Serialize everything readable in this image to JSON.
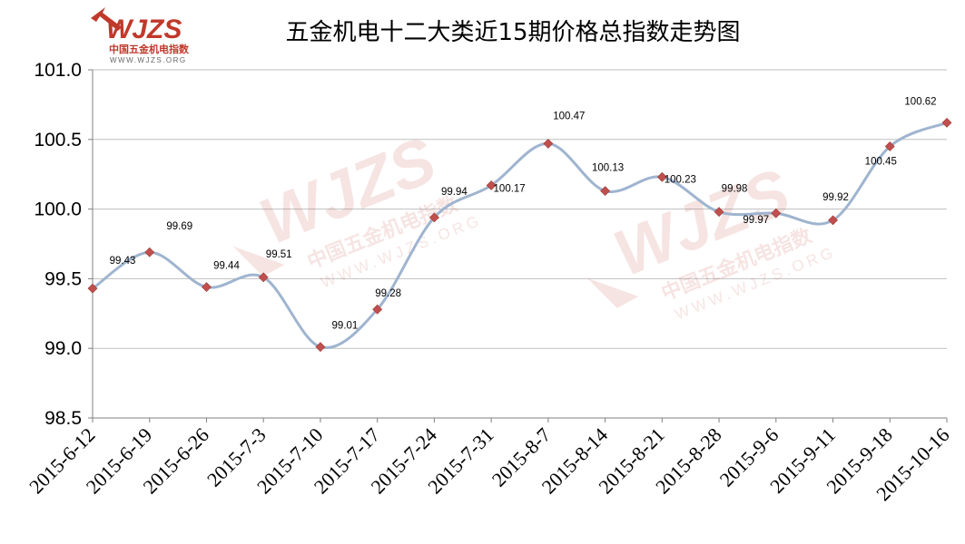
{
  "logo": {
    "brand": "WJZS",
    "cn_name": "中国五金机电指数",
    "url": "WWW.WJZS.ORG",
    "color": "#c0392b"
  },
  "chart_data": {
    "type": "line",
    "title": "五金机电十二大类近15期价格总指数走势图",
    "xlabel": "",
    "ylabel": "",
    "categories": [
      "2015-6-12",
      "2015-6-19",
      "2015-6-26",
      "2015-7-3",
      "2015-7-10",
      "2015-7-17",
      "2015-7-24",
      "2015-7-31",
      "2015-8-7",
      "2015-8-14",
      "2015-8-21",
      "2015-8-28",
      "2015-9-6",
      "2015-9-11",
      "2015-9-18",
      "2015-10-16"
    ],
    "values": [
      99.43,
      99.69,
      99.44,
      99.51,
      99.01,
      99.28,
      99.94,
      100.17,
      100.47,
      100.13,
      100.23,
      99.98,
      99.97,
      99.92,
      100.45,
      100.62
    ],
    "value_labels": [
      "99.43",
      "99.69",
      "99.44",
      "99.51",
      "99.01",
      "99.28",
      "99.94",
      "100.17",
      "100.47",
      "100.13",
      "100.23",
      "99.98",
      "99.97",
      "99.92",
      "100.45",
      "100.62"
    ],
    "ylim": [
      98.5,
      101.0
    ],
    "yticks": [
      98.5,
      99.0,
      99.5,
      100.0,
      100.5,
      101.0
    ],
    "ytick_labels": [
      "98.5",
      "99.0",
      "99.5",
      "100.0",
      "100.5",
      "101.0"
    ],
    "grid": true,
    "smooth": true,
    "line_color": "#9fb4cf",
    "marker_color": "#c0504d",
    "gridline_color": "#bfbfbf"
  }
}
